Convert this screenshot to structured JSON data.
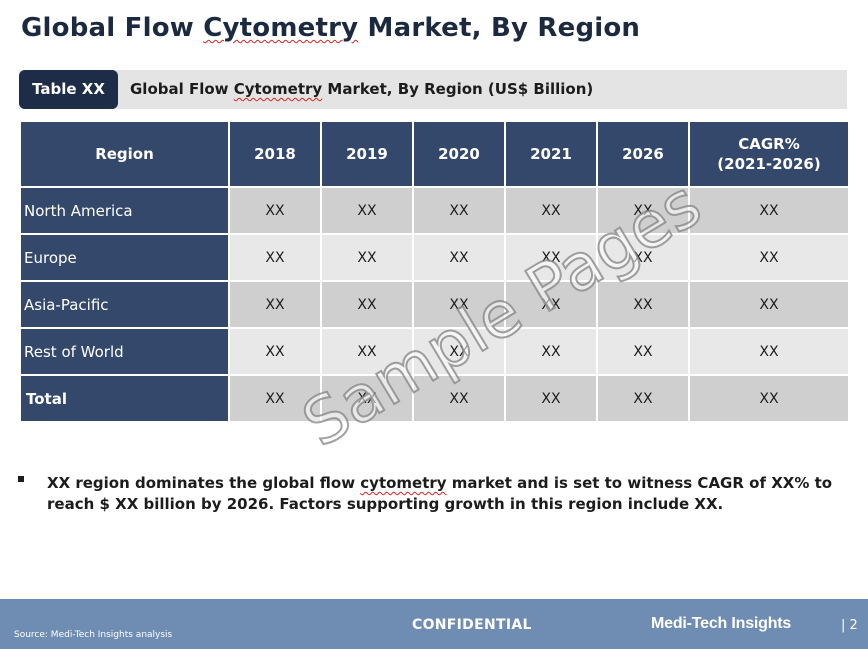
{
  "title": {
    "before": "Global Flow ",
    "flagged": "Cytometry",
    "after": " Market, By Region"
  },
  "caption": {
    "tag": "Table XX",
    "before": "Global Flow ",
    "flagged": "Cytometry",
    "after": " Market, By Region (US$ Billion)"
  },
  "table": {
    "headers": [
      "Region",
      "2018",
      "2019",
      "2020",
      "2021",
      "2026",
      "CAGR%",
      "(2021-2026)"
    ],
    "rows": [
      {
        "region": "North America",
        "values": [
          "XX",
          "XX",
          "XX",
          "XX",
          "XX",
          "XX"
        ]
      },
      {
        "region": "Europe",
        "values": [
          "XX",
          "XX",
          "XX",
          "XX",
          "XX",
          "XX"
        ]
      },
      {
        "region": "Asia-Pacific",
        "values": [
          "XX",
          "XX",
          "XX",
          "XX",
          "XX",
          "XX"
        ]
      },
      {
        "region": "Rest of World",
        "values": [
          "XX",
          "XX",
          "XX",
          "XX",
          "XX",
          "XX"
        ]
      },
      {
        "region": "Total",
        "values": [
          "XX",
          "XX",
          "XX",
          "XX",
          "XX",
          "XX"
        ]
      }
    ]
  },
  "watermark": "Sample Pages",
  "bullet": {
    "before": "XX region dominates the global flow ",
    "flagged": "cytometry",
    "after": " market and is set to witness CAGR of XX% to reach $ XX billion by 2026. Factors supporting growth in this region include XX."
  },
  "footer": {
    "source": "Source: Medi-Tech Insights analysis",
    "confidential": "CONFIDENTIAL",
    "brand": "Medi-Tech Insights",
    "page": "| 2"
  },
  "colors": {
    "header_navy": "#34486b",
    "tag_navy": "#1d2d48",
    "footer_blue": "#6f8db3",
    "row_odd": "#cfcfcf",
    "row_even": "#e8e8e8"
  }
}
